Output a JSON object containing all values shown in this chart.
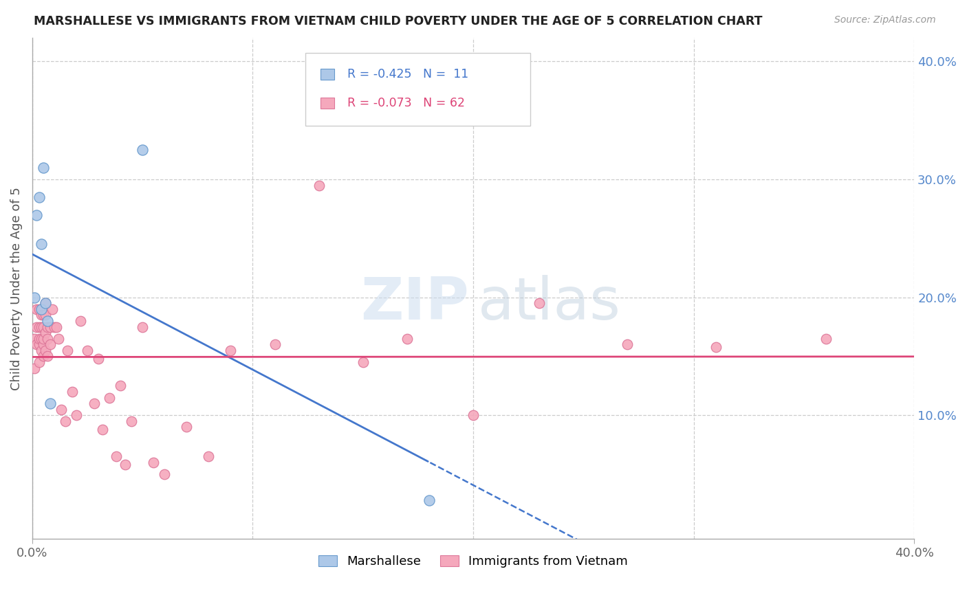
{
  "title": "MARSHALLESE VS IMMIGRANTS FROM VIETNAM CHILD POVERTY UNDER THE AGE OF 5 CORRELATION CHART",
  "source": "Source: ZipAtlas.com",
  "ylabel": "Child Poverty Under the Age of 5",
  "xlim": [
    0,
    0.4
  ],
  "ylim": [
    -0.005,
    0.42
  ],
  "legend_blue_r": "-0.425",
  "legend_blue_n": "11",
  "legend_pink_r": "-0.073",
  "legend_pink_n": "62",
  "blue_color": "#adc8e8",
  "pink_color": "#f5a8bc",
  "blue_line_color": "#4477cc",
  "pink_line_color": "#dd4477",
  "blue_marker_edge": "#6699cc",
  "pink_marker_edge": "#dd7799",
  "marshallese_x": [
    0.001,
    0.002,
    0.003,
    0.004,
    0.004,
    0.005,
    0.006,
    0.007,
    0.008,
    0.05,
    0.18
  ],
  "marshallese_y": [
    0.2,
    0.27,
    0.285,
    0.19,
    0.245,
    0.31,
    0.195,
    0.18,
    0.11,
    0.325,
    0.028
  ],
  "vietnam_x": [
    0.001,
    0.001,
    0.002,
    0.002,
    0.002,
    0.003,
    0.003,
    0.003,
    0.003,
    0.003,
    0.004,
    0.004,
    0.004,
    0.004,
    0.005,
    0.005,
    0.005,
    0.005,
    0.005,
    0.006,
    0.006,
    0.006,
    0.006,
    0.007,
    0.007,
    0.007,
    0.008,
    0.008,
    0.009,
    0.01,
    0.011,
    0.012,
    0.013,
    0.015,
    0.016,
    0.018,
    0.02,
    0.022,
    0.025,
    0.028,
    0.03,
    0.032,
    0.035,
    0.038,
    0.04,
    0.042,
    0.045,
    0.05,
    0.055,
    0.06,
    0.07,
    0.08,
    0.09,
    0.11,
    0.13,
    0.15,
    0.17,
    0.2,
    0.23,
    0.27,
    0.31,
    0.36
  ],
  "vietnam_y": [
    0.165,
    0.14,
    0.19,
    0.16,
    0.175,
    0.175,
    0.16,
    0.19,
    0.145,
    0.165,
    0.185,
    0.165,
    0.155,
    0.175,
    0.175,
    0.16,
    0.185,
    0.15,
    0.165,
    0.195,
    0.17,
    0.155,
    0.185,
    0.165,
    0.175,
    0.15,
    0.175,
    0.16,
    0.19,
    0.175,
    0.175,
    0.165,
    0.105,
    0.095,
    0.155,
    0.12,
    0.1,
    0.18,
    0.155,
    0.11,
    0.148,
    0.088,
    0.115,
    0.065,
    0.125,
    0.058,
    0.095,
    0.175,
    0.06,
    0.05,
    0.09,
    0.065,
    0.155,
    0.16,
    0.295,
    0.145,
    0.165,
    0.1,
    0.195,
    0.16,
    0.158,
    0.165
  ]
}
